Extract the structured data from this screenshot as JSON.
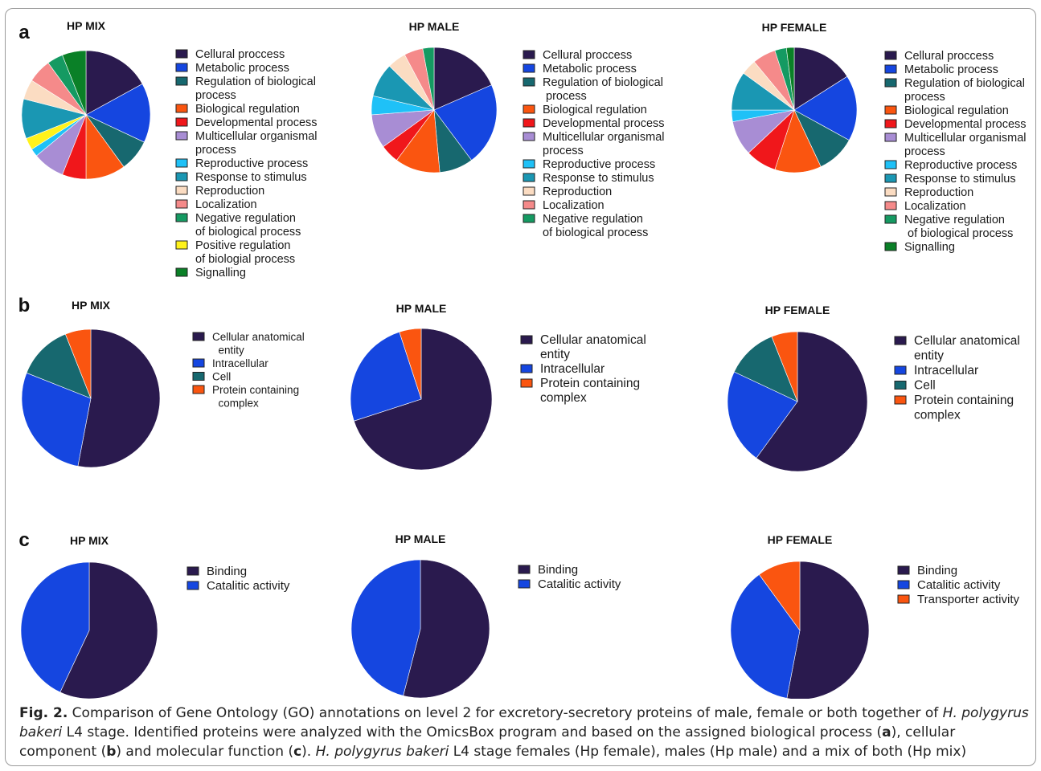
{
  "colors": {
    "Cellural proccess": "#2a1a4e",
    "Cellural proccess ": "#2a1a4e",
    "Metabolic process": "#1546e0",
    "Regulation of biological process": "#17686f",
    "Biological regulation": "#fa5510",
    "Developmental process": "#f0171b",
    "Multicellular organismal process": "#a88dd4",
    "Reproductive process": "#1fc1f7",
    "Response to stimulus": "#1a97b3",
    "Reproduction": "#fbdcc2",
    "Localization": "#f58a8a",
    "Negative regulation of biological process": "#159a62",
    "Positive regulation of biologial process": "#fff21b",
    "Signalling": "#0a8027",
    "Cellular anatomical entity": "#2a1a4e",
    "Intracellular": "#1546e0",
    "Cell": "#17686f",
    "Protein containing complex": "#fa5510",
    "Binding": "#2a1a4e",
    "Catalitic activity": "#1546e0",
    "Transporter activity": "#fa5510"
  },
  "panels": [
    {
      "letter": "a",
      "letter_x": 30,
      "letter_y": 48
    },
    {
      "letter": "b",
      "letter_x": 30,
      "letter_y": 388
    },
    {
      "letter": "c",
      "letter_x": 30,
      "letter_y": 680
    }
  ],
  "chart_data": [
    {
      "type": "pie",
      "panel": "a",
      "title": "HP MIX",
      "categories": [
        "Cellural proccess",
        "Metabolic process",
        "Regulation of biological process",
        "Biological regulation",
        "Developmental process",
        "Multicellular organismal process",
        "Reproductive process",
        "Positive regulation of biologial process",
        "Response to stimulus",
        "Reproduction",
        "Localization",
        "Negative regulation of biological process",
        "Signalling"
      ],
      "values": [
        17,
        15,
        8,
        10,
        6,
        8,
        2,
        3,
        10,
        5,
        6,
        4,
        6
      ],
      "legend": [
        [
          "Cellural proccess"
        ],
        [
          "Metabolic process"
        ],
        [
          "Regulation of biological",
          "process"
        ],
        [
          "Biological regulation"
        ],
        [
          "Developmental process"
        ],
        [
          "Multicellular organismal",
          "process"
        ],
        [
          "Reproductive process"
        ],
        [
          "Response to stimulus"
        ],
        [
          "Reproduction"
        ],
        [
          "Localization"
        ],
        [
          "Negative regulation",
          "of biological process"
        ],
        [
          "Positive regulation",
          "of biologial process"
        ],
        [
          "Signalling"
        ]
      ],
      "legend_keys": [
        "Cellural proccess",
        "Metabolic process",
        "Regulation of biological process",
        "Biological regulation",
        "Developmental process",
        "Multicellular organismal process",
        "Reproductive process",
        "Response to stimulus",
        "Reproduction",
        "Localization",
        "Negative regulation of biological process",
        "Positive regulation of biologial process",
        "Signalling"
      ]
    },
    {
      "type": "pie",
      "panel": "a",
      "title": "HP MALE",
      "categories": [
        "Cellural proccess",
        "Metabolic process",
        "Regulation of biological process",
        "Biological regulation",
        "Developmental process",
        "Multicellular organismal process",
        "Reproductive process",
        "Response to stimulus",
        "Reproduction",
        "Localization",
        "Negative regulation of biological process"
      ],
      "values": [
        19,
        22,
        9,
        12,
        5,
        9,
        5,
        9,
        5,
        5,
        3
      ],
      "legend": [
        [
          "Cellural proccess"
        ],
        [
          "Metabolic process"
        ],
        [
          "Regulation of biological",
          " process"
        ],
        [
          "Biological regulation"
        ],
        [
          "Developmental process"
        ],
        [
          "Multicellular organismal",
          "process"
        ],
        [
          "Reproductive process"
        ],
        [
          "Response to stimulus"
        ],
        [
          "Reproduction"
        ],
        [
          "Localization"
        ],
        [
          "Negative regulation",
          "of biological process"
        ]
      ],
      "legend_keys": [
        "Cellural proccess",
        "Metabolic process",
        "Regulation of biological process",
        "Biological regulation",
        "Developmental process",
        "Multicellular organismal process",
        "Reproductive process",
        "Response to stimulus",
        "Reproduction",
        "Localization",
        "Negative regulation of biological process"
      ]
    },
    {
      "type": "pie",
      "panel": "a",
      "title": "HP FEMALE",
      "categories": [
        "Cellural proccess",
        "Metabolic process",
        "Regulation of biological process",
        "Biological regulation",
        "Developmental process",
        "Multicellular organismal process",
        "Reproductive process",
        "Response to stimulus",
        "Reproduction",
        "Localization",
        "Negative regulation of biological process",
        "Signalling"
      ],
      "values": [
        16,
        17,
        10,
        12,
        8,
        9,
        3,
        10,
        4,
        6,
        3,
        2
      ],
      "legend": [
        [
          "Cellural proccess"
        ],
        [
          "Metabolic process"
        ],
        [
          "Regulation of biological",
          "process"
        ],
        [
          "Biological regulation"
        ],
        [
          "Developmental process"
        ],
        [
          "Multicellular organismal",
          "process"
        ],
        [
          "Reproductive process"
        ],
        [
          "Response to stimulus"
        ],
        [
          "Reproduction"
        ],
        [
          "Localization"
        ],
        [
          "Negative regulation",
          " of biological process"
        ],
        [
          "Signalling"
        ]
      ],
      "legend_keys": [
        "Cellural proccess",
        "Metabolic process",
        "Regulation of biological process",
        "Biological regulation",
        "Developmental process",
        "Multicellular organismal process",
        "Reproductive process",
        "Response to stimulus",
        "Reproduction",
        "Localization",
        "Negative regulation of biological process",
        "Signalling"
      ]
    },
    {
      "type": "pie",
      "panel": "b",
      "title": "HP MIX",
      "categories": [
        "Cellular anatomical entity",
        "Intracellular",
        "Cell",
        "Protein containing complex"
      ],
      "values": [
        53,
        28,
        13,
        6
      ],
      "legend": [
        [
          "Cellular anatomical",
          "  entity"
        ],
        [
          "Intracellular"
        ],
        [
          "Cell"
        ],
        [
          "Protein containing",
          "  complex"
        ]
      ],
      "legend_keys": [
        "Cellular anatomical entity",
        "Intracellular",
        "Cell",
        "Protein containing complex"
      ]
    },
    {
      "type": "pie",
      "panel": "b",
      "title": "HP MALE",
      "categories": [
        "Cellular anatomical entity",
        "Intracellular",
        "Protein containing complex"
      ],
      "values": [
        70,
        25,
        5
      ],
      "legend": [
        [
          "Cellular anatomical",
          "entity"
        ],
        [
          "Intracellular"
        ],
        [
          "Protein containing",
          "complex"
        ]
      ],
      "legend_keys": [
        "Cellular anatomical entity",
        "Intracellular",
        "Protein containing complex"
      ]
    },
    {
      "type": "pie",
      "panel": "b",
      "title": "HP FEMALE",
      "categories": [
        "Cellular anatomical entity",
        "Intracellular",
        "Cell",
        "Protein containing complex"
      ],
      "values": [
        60,
        22,
        12,
        6
      ],
      "legend": [
        [
          "Cellular anatomical",
          "entity"
        ],
        [
          "Intracellular"
        ],
        [
          "Cell"
        ],
        [
          "Protein containing",
          "complex"
        ]
      ],
      "legend_keys": [
        "Cellular anatomical entity",
        "Intracellular",
        "Cell",
        "Protein containing complex"
      ]
    },
    {
      "type": "pie",
      "panel": "c",
      "title": "HP MIX",
      "categories": [
        "Binding",
        "Catalitic activity"
      ],
      "values": [
        57,
        43
      ],
      "legend": [
        [
          "Binding"
        ],
        [
          "Catalitic activity"
        ]
      ],
      "legend_keys": [
        "Binding",
        "Catalitic activity"
      ]
    },
    {
      "type": "pie",
      "panel": "c",
      "title": "HP MALE",
      "categories": [
        "Binding",
        "Catalitic activity"
      ],
      "values": [
        54,
        46
      ],
      "legend": [
        [
          "Binding"
        ],
        [
          "Catalitic activity"
        ]
      ],
      "legend_keys": [
        "Binding",
        "Catalitic activity"
      ]
    },
    {
      "type": "pie",
      "panel": "c",
      "title": "HP FEMALE",
      "categories": [
        "Binding",
        "Catalitic activity",
        "Transporter activity"
      ],
      "values": [
        53,
        37,
        10
      ],
      "legend": [
        [
          "Binding"
        ],
        [
          "Catalitic activity"
        ],
        [
          "Transporter activity"
        ]
      ],
      "legend_keys": [
        "Binding",
        "Catalitic activity",
        "Transporter activity"
      ]
    }
  ],
  "caption": {
    "label": "Fig. 2.",
    "t1": " Comparison of Gene Ontology (GO) annotations on level 2 for excretory-secretory proteins of male, female or both together of ",
    "i1": "H. polygyrus bakeri",
    "t2": " L4 stage. Identified proteins were analyzed with the OmicsBox program and based on the assigned biological process (",
    "b1": "a",
    "t3": "), cellular component (",
    "b2": "b",
    "t4": ") and molecular function (",
    "b3": "c",
    "t5": "). ",
    "i2": "H. polygyrus bakeri",
    "t6": " L4 stage females (Hp female), males (Hp male) and a mix of both (Hp mix)"
  }
}
